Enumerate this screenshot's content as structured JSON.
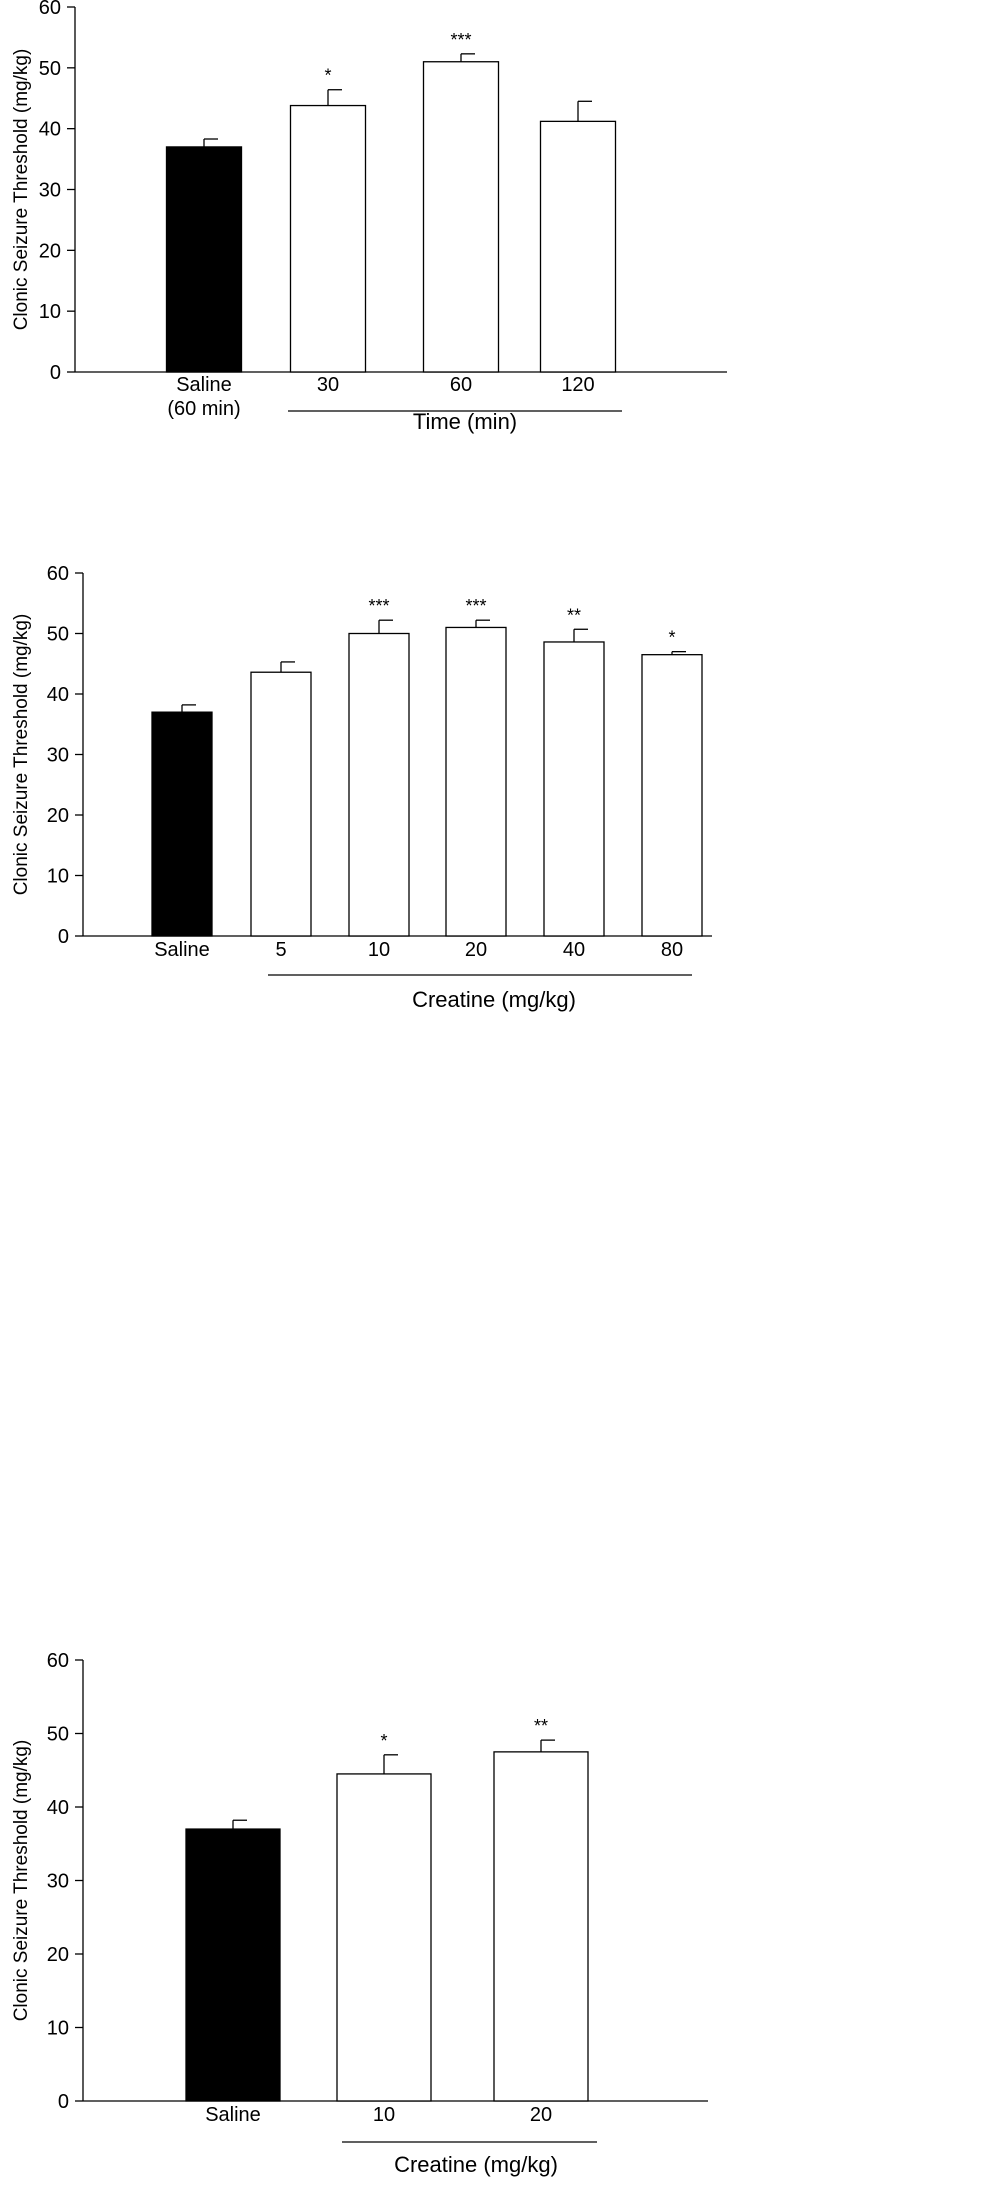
{
  "chart_data": [
    {
      "type": "bar",
      "ylabel": "Clonic Seizure Threshold (mg/kg)",
      "ylim": [
        0,
        60
      ],
      "yticks": [
        0,
        10,
        20,
        30,
        40,
        50,
        60
      ],
      "categories": [
        "Saline\n(60 min)",
        "30",
        "60",
        "120"
      ],
      "values": [
        37,
        43.8,
        51,
        41.2
      ],
      "errors": [
        1.3,
        2.6,
        1.3,
        3.3
      ],
      "fills": [
        "#000000",
        "#ffffff",
        "#ffffff",
        "#ffffff"
      ],
      "significance": [
        "",
        "*",
        "***",
        ""
      ],
      "group_label": "Time (min)",
      "group_span": [
        1,
        3
      ],
      "grid": false
    },
    {
      "type": "bar",
      "ylabel": "Clonic Seizure Threshold (mg/kg)",
      "ylim": [
        0,
        60
      ],
      "yticks": [
        0,
        10,
        20,
        30,
        40,
        50,
        60
      ],
      "categories": [
        "Saline",
        "5",
        "10",
        "20",
        "40",
        "80"
      ],
      "values": [
        37,
        43.6,
        50,
        51,
        48.6,
        46.5
      ],
      "errors": [
        1.2,
        1.7,
        2.2,
        1.2,
        2.1,
        0.5
      ],
      "fills": [
        "#000000",
        "#ffffff",
        "#ffffff",
        "#ffffff",
        "#ffffff",
        "#ffffff"
      ],
      "significance": [
        "",
        "",
        "***",
        "***",
        "**",
        "*"
      ],
      "group_label": "Creatine (mg/kg)",
      "group_span": [
        1,
        5
      ],
      "grid": false
    },
    {
      "type": "bar",
      "ylabel": "Clonic Seizure Threshold (mg/kg)",
      "ylim": [
        0,
        60
      ],
      "yticks": [
        0,
        10,
        20,
        30,
        40,
        50,
        60
      ],
      "categories": [
        "Saline",
        "10",
        "20"
      ],
      "values": [
        37,
        44.5,
        47.5
      ],
      "errors": [
        1.2,
        2.6,
        1.6
      ],
      "fills": [
        "#000000",
        "#ffffff",
        "#ffffff"
      ],
      "significance": [
        "",
        "*",
        "**"
      ],
      "group_label": "Creatine (mg/kg)",
      "group_span": [
        1,
        2
      ],
      "grid": false
    }
  ]
}
